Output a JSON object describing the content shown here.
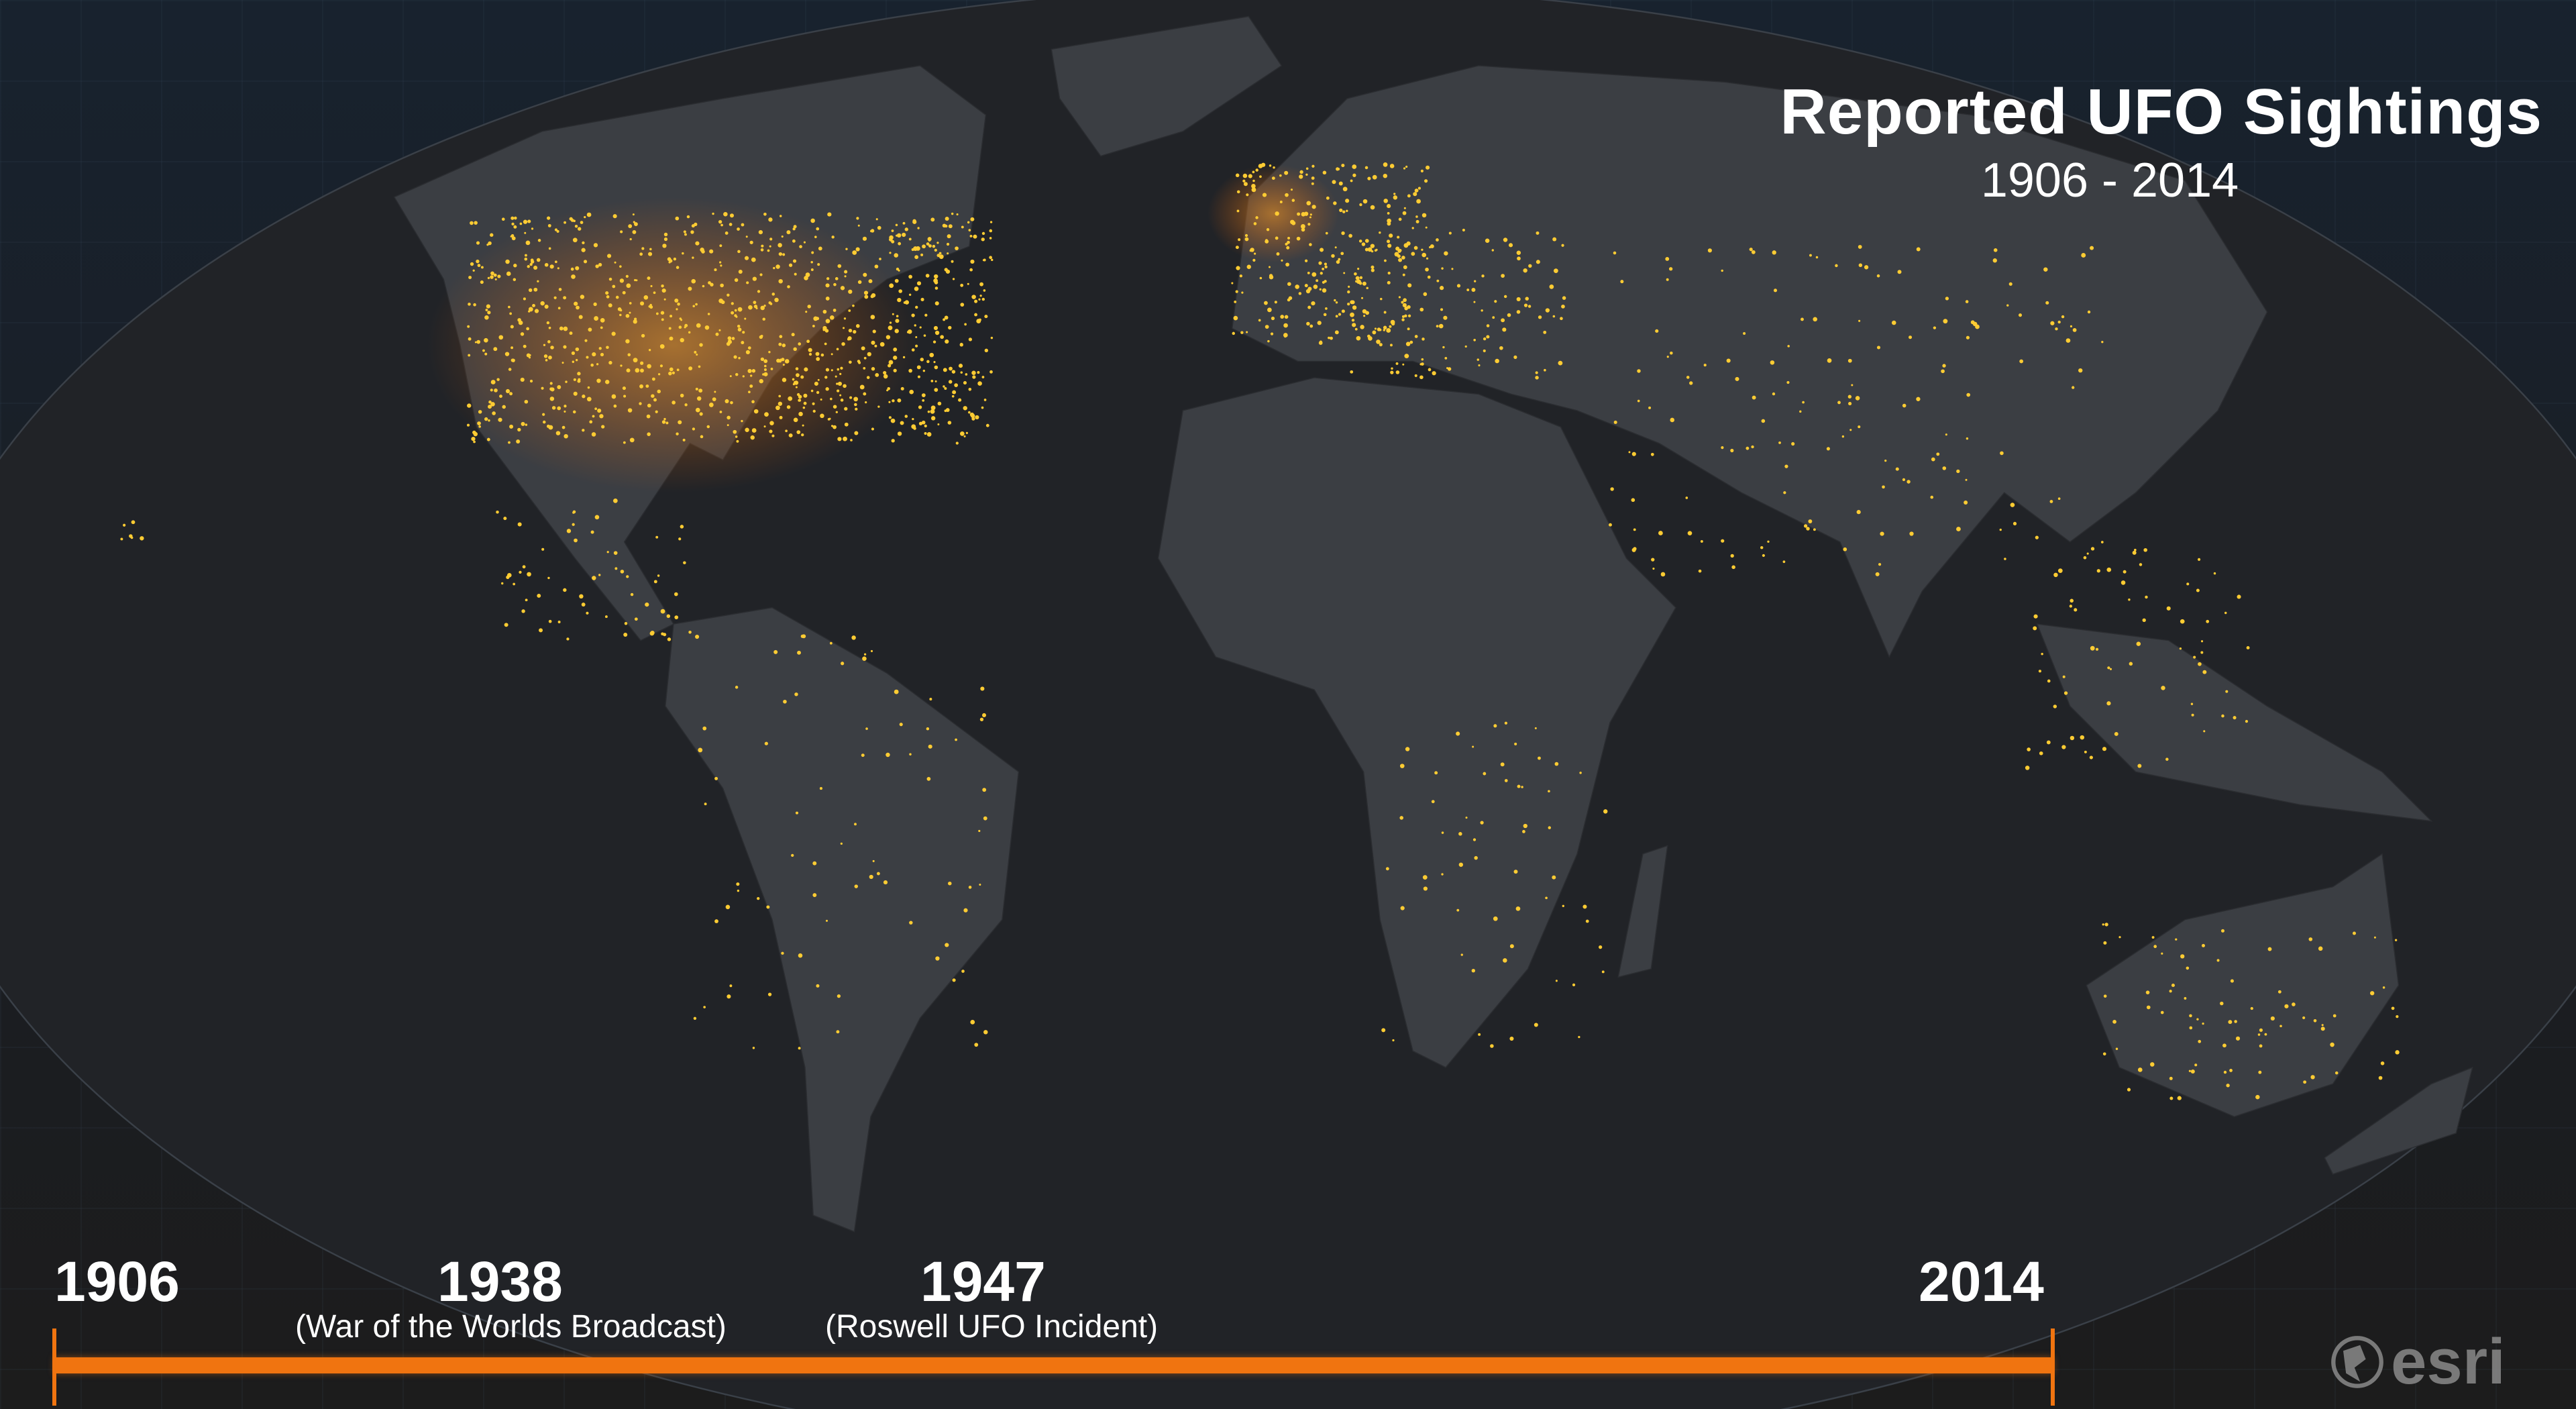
{
  "title": "Reported UFO Sightings",
  "subtitle": "1906 - 2014",
  "colors": {
    "accent": "#f07410",
    "sighting_glow": "#ffcc33",
    "land": "#3a3d42",
    "ocean": "#202226"
  },
  "timeline": {
    "start": {
      "year": "1906"
    },
    "events": [
      {
        "year": "1938",
        "note": "(War of the Worlds Broadcast)"
      },
      {
        "year": "1947",
        "note": "(Roswell UFO Incident)"
      }
    ],
    "end": {
      "year": "2014"
    },
    "progress": 1.0
  },
  "logo": {
    "text": "esri",
    "icon": "globe-icon"
  }
}
